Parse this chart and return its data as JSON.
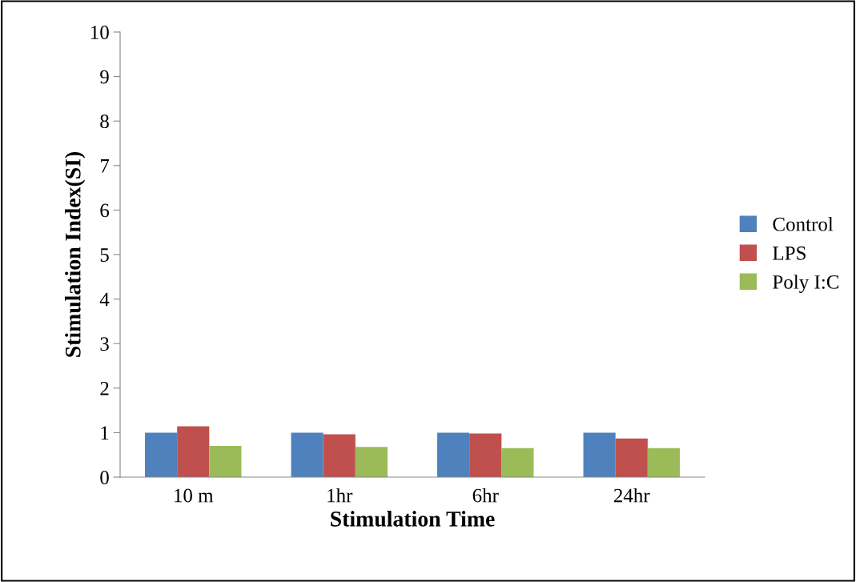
{
  "chart_data": {
    "type": "bar",
    "xlabel": "Stimulation Time",
    "ylabel": "Stimulation Index(SI)",
    "categories": [
      "10 m",
      "1hr",
      "6hr",
      "24hr"
    ],
    "series": [
      {
        "name": "Control",
        "color": "#4f81bd",
        "values": [
          1.0,
          1.0,
          1.0,
          1.0
        ]
      },
      {
        "name": "LPS",
        "color": "#c0504d",
        "values": [
          1.14,
          0.96,
          0.98,
          0.87
        ]
      },
      {
        "name": "Poly I:C",
        "color": "#9bbb59",
        "values": [
          0.7,
          0.68,
          0.65,
          0.65
        ]
      }
    ],
    "ylim": [
      0,
      10
    ],
    "yticks": [
      0,
      1,
      2,
      3,
      4,
      5,
      6,
      7,
      8,
      9,
      10
    ],
    "grid": false,
    "legend": "right"
  }
}
